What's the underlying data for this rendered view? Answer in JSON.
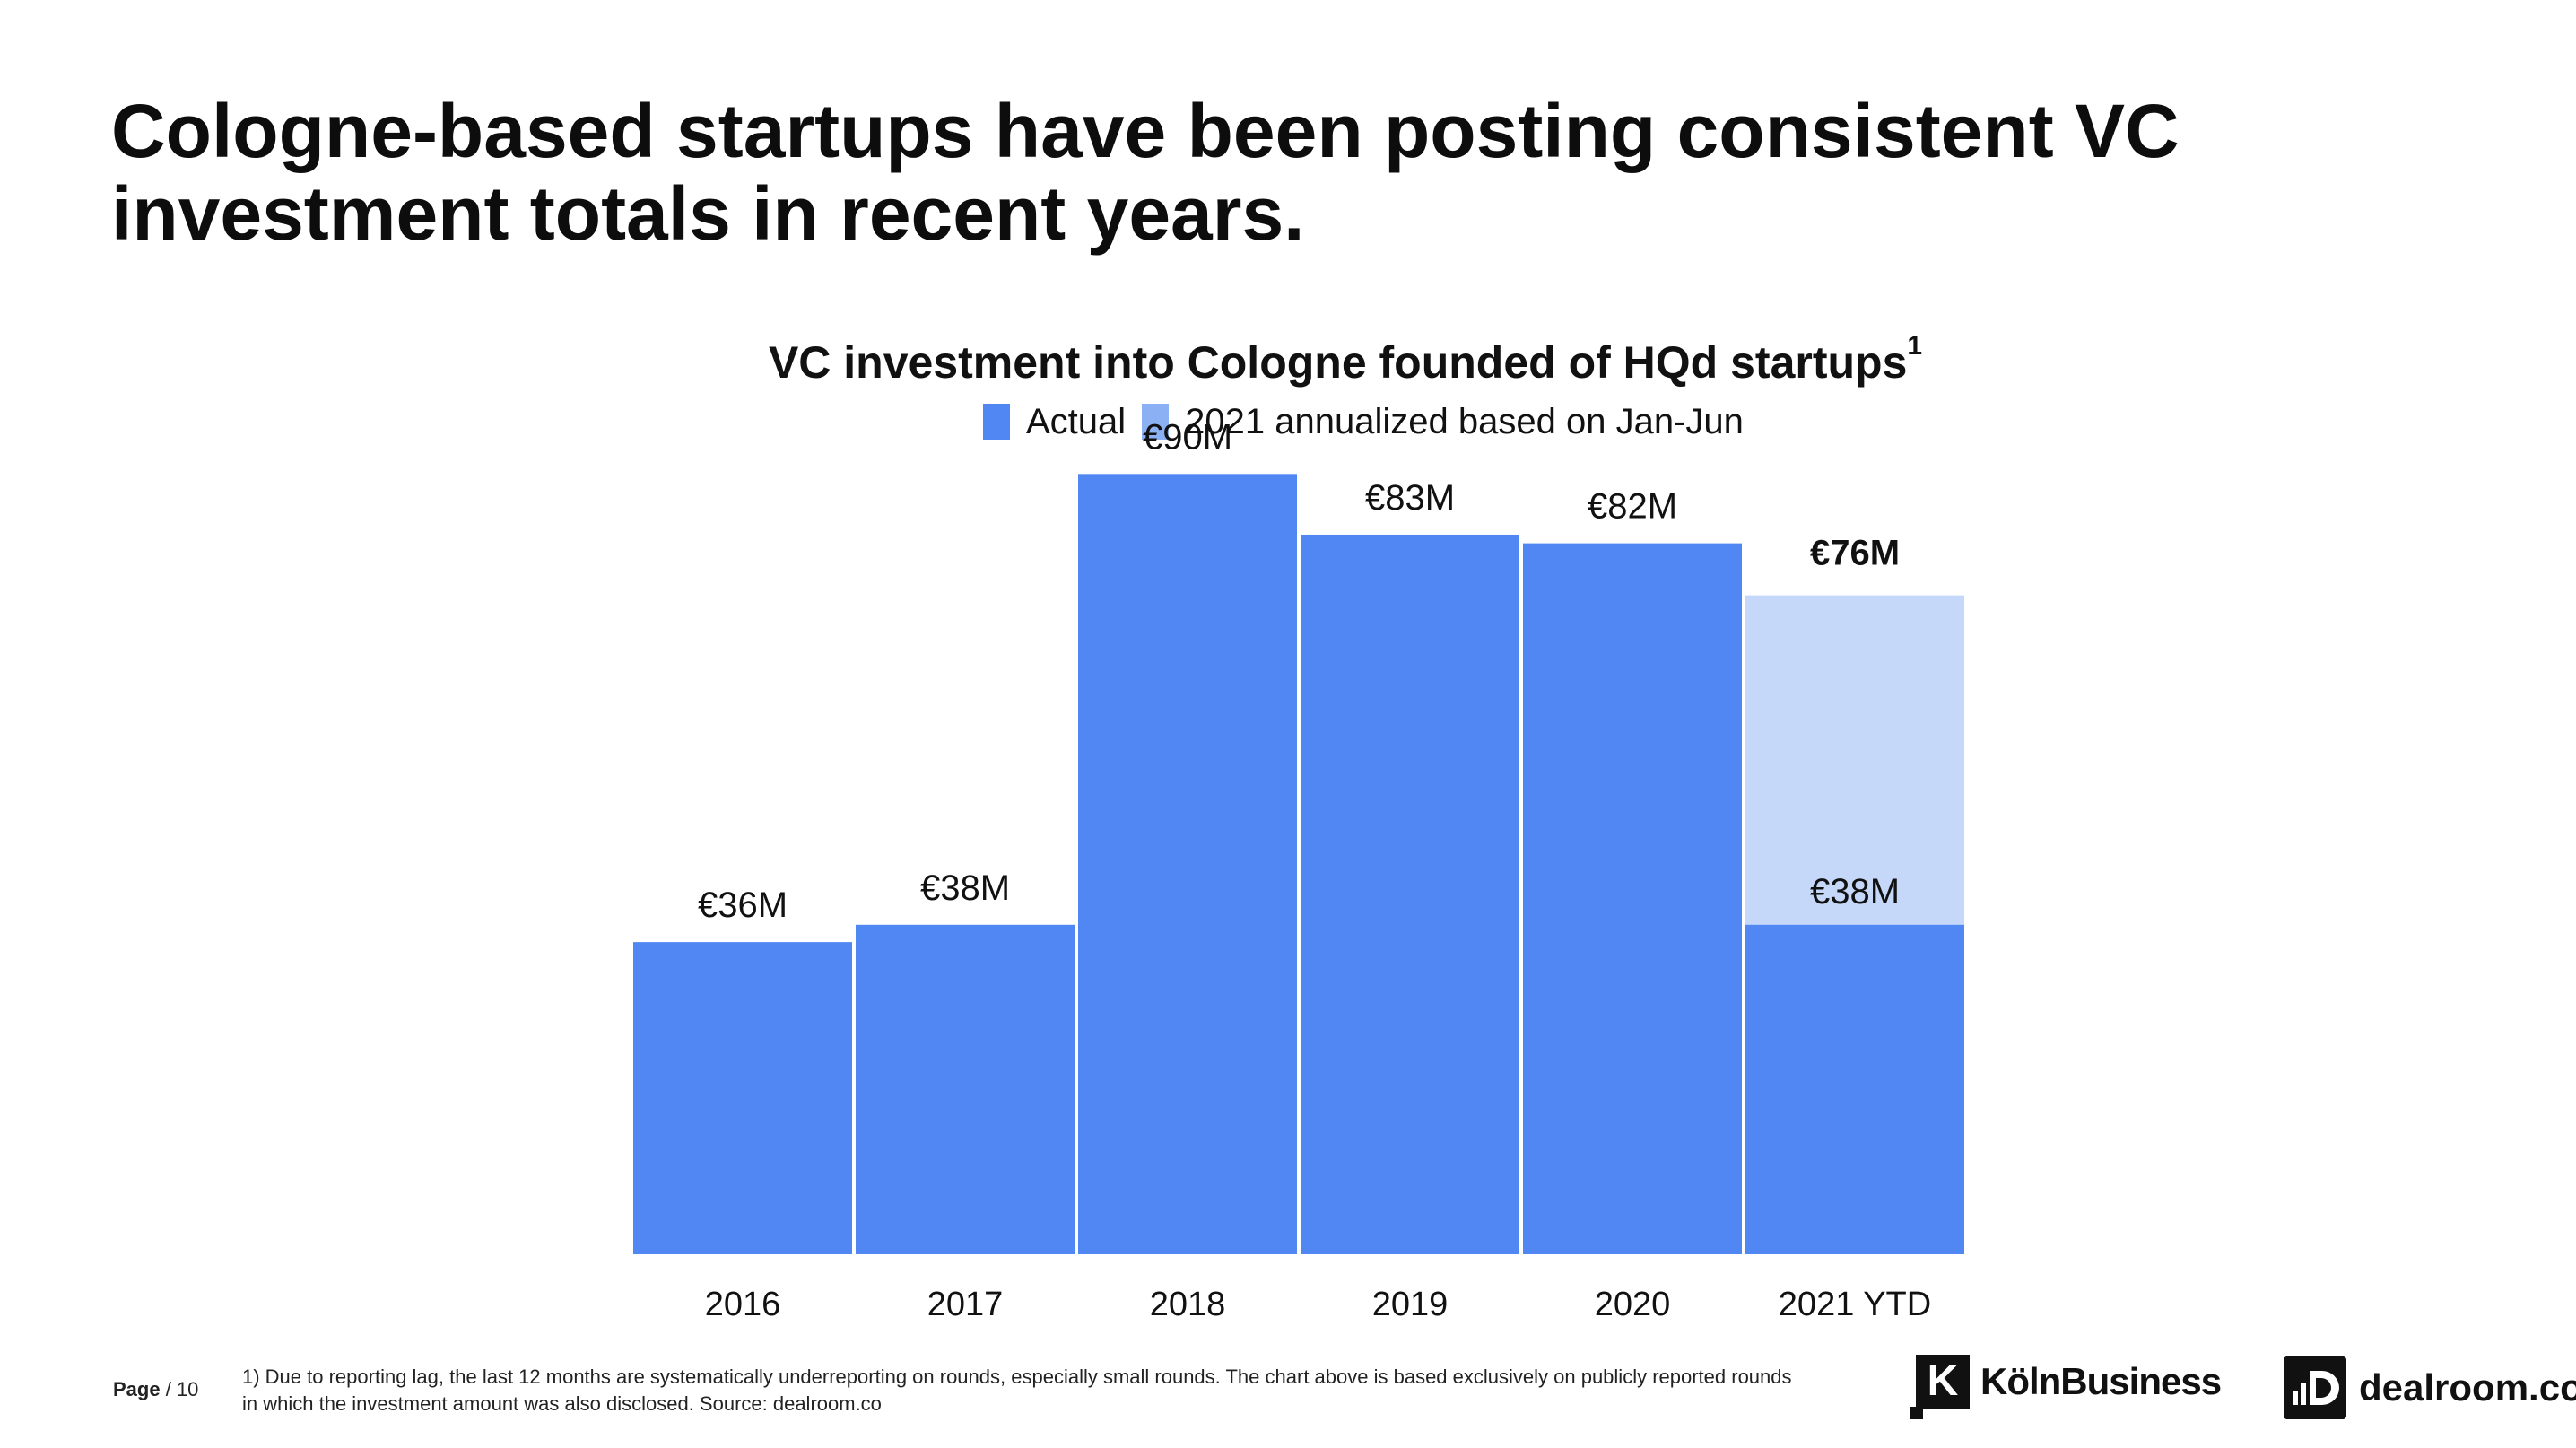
{
  "headline": {
    "line1": "Cologne-based startups have been posting consistent VC",
    "line2": "investment totals in recent years."
  },
  "chart_data": {
    "type": "bar",
    "title": "VC investment into Cologne founded of HQd startups",
    "title_footnote_mark": "1",
    "categories": [
      "2016",
      "2017",
      "2018",
      "2019",
      "2020",
      "2021 YTD"
    ],
    "series": [
      {
        "name": "Actual",
        "color": "#5087f2",
        "values": [
          36,
          38,
          90,
          83,
          82,
          38
        ]
      },
      {
        "name": "2021 annualized based on Jan-Jun",
        "color": "#8cb0f4",
        "bar_color": "#c6d8fa",
        "values": [
          null,
          null,
          null,
          null,
          null,
          76
        ]
      }
    ],
    "value_labels": [
      "€36M",
      "€38M",
      "€90M",
      "€83M",
      "€82M",
      "€38M"
    ],
    "annualized_label": "€76M",
    "ylim": [
      0,
      95
    ],
    "xlabel": "",
    "ylabel": "",
    "grid": false,
    "legend_position": "top-center"
  },
  "footer": {
    "page_label": "Page",
    "page_number": "/ 10",
    "footnote": "1) Due to reporting lag, the last 12 months are systematically underreporting on rounds, especially small rounds. The chart above is based exclusively on publicly reported rounds\n in which the investment amount was also disclosed.  Source: dealroom.co"
  },
  "logos": {
    "koln_mark": "K",
    "koln_name": "KölnBusiness",
    "dealroom_mark": "D",
    "dealroom_name": "dealroom.co"
  }
}
